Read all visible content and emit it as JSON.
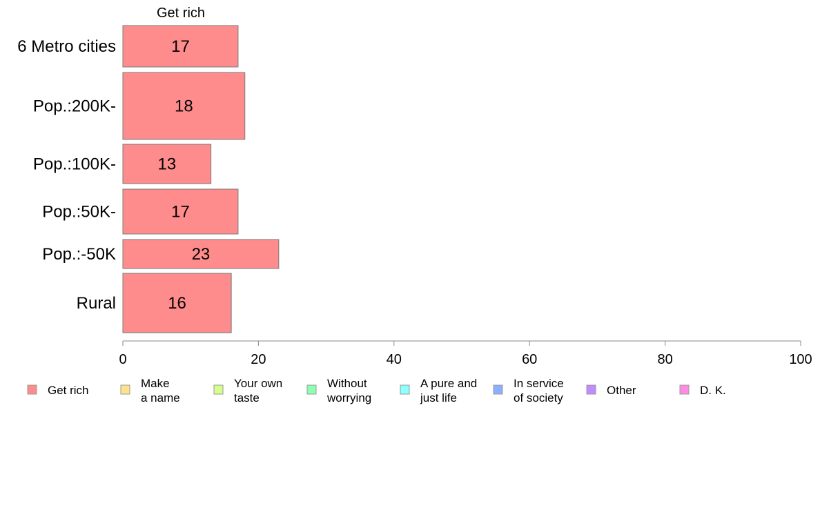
{
  "chart_data": {
    "type": "bar",
    "orientation": "horizontal",
    "title": "Get rich",
    "categories": [
      "6 Metro cities",
      "Pop.:200K-",
      "Pop.:100K-",
      "Pop.:50K-",
      "Pop.:-50K",
      "Rural"
    ],
    "series": [
      {
        "name": "Get rich",
        "values": [
          17,
          18,
          13,
          17,
          23,
          16
        ]
      }
    ],
    "data_labels": [
      "17",
      "18",
      "13",
      "17",
      "23",
      "16"
    ],
    "xlim": [
      0,
      100
    ],
    "xticks": [
      "0",
      "20",
      "40",
      "60",
      "80",
      "100"
    ],
    "grid": false,
    "legend_position": "bottom",
    "legend": [
      {
        "lines": [
          "Get rich"
        ],
        "color": "#ff8c8c"
      },
      {
        "lines": [
          "Make",
          "a name"
        ],
        "color": "#ffe38c"
      },
      {
        "lines": [
          "Your own",
          "taste"
        ],
        "color": "#d4ff8c"
      },
      {
        "lines": [
          "Without",
          "worrying"
        ],
        "color": "#8cffb0"
      },
      {
        "lines": [
          "A pure and",
          "just life"
        ],
        "color": "#8cffff"
      },
      {
        "lines": [
          "In service",
          "of society"
        ],
        "color": "#8cb0ff"
      },
      {
        "lines": [
          "Other"
        ],
        "color": "#c08cff"
      },
      {
        "lines": [
          "D. K."
        ],
        "color": "#ff8ce0"
      }
    ]
  }
}
